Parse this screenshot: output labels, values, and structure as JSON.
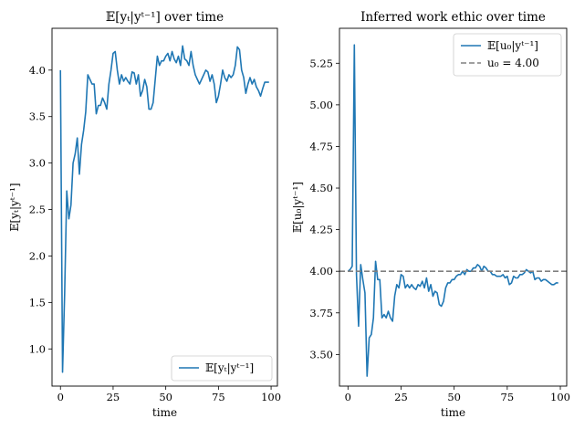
{
  "chart_data": [
    {
      "type": "line",
      "title": "𝔼[yₜ|yᵗ⁻¹] over time",
      "xlabel": "time",
      "ylabel": "𝔼[yₜ|yᵗ⁻¹]",
      "xlim": [
        -4,
        103
      ],
      "ylim": [
        0.6,
        4.45
      ],
      "xticks": [
        0,
        25,
        50,
        75,
        100
      ],
      "yticks": [
        1.0,
        1.5,
        2.0,
        2.5,
        3.0,
        3.5,
        4.0
      ],
      "ytick_labels": [
        "1.0",
        "1.5",
        "2.0",
        "2.5",
        "3.0",
        "3.5",
        "4.0"
      ],
      "grid": false,
      "legend": "lower-right",
      "series": [
        {
          "name": "𝔼[yₜ|yᵗ⁻¹]",
          "color": "#1f77b4",
          "x": [
            0,
            1,
            2,
            3,
            4,
            5,
            6,
            7,
            8,
            9,
            10,
            11,
            12,
            13,
            14,
            15,
            16,
            17,
            18,
            19,
            20,
            21,
            22,
            23,
            24,
            25,
            26,
            27,
            28,
            29,
            30,
            31,
            32,
            33,
            34,
            35,
            36,
            37,
            38,
            39,
            40,
            41,
            42,
            43,
            44,
            45,
            46,
            47,
            48,
            49,
            50,
            51,
            52,
            53,
            54,
            55,
            56,
            57,
            58,
            59,
            60,
            61,
            62,
            63,
            64,
            65,
            66,
            67,
            68,
            69,
            70,
            71,
            72,
            73,
            74,
            75,
            76,
            77,
            78,
            79,
            80,
            81,
            82,
            83,
            84,
            85,
            86,
            87,
            88,
            89,
            90,
            91,
            92,
            93,
            94,
            95,
            96,
            97,
            98,
            99
          ],
          "y": [
            4.0,
            0.75,
            1.6,
            2.7,
            2.4,
            2.55,
            3.0,
            3.1,
            3.27,
            2.88,
            3.2,
            3.35,
            3.55,
            3.95,
            3.9,
            3.85,
            3.85,
            3.53,
            3.62,
            3.62,
            3.7,
            3.65,
            3.58,
            3.85,
            4.0,
            4.18,
            4.2,
            4.0,
            3.85,
            3.95,
            3.88,
            3.92,
            3.88,
            3.85,
            3.98,
            3.97,
            3.85,
            3.95,
            3.72,
            3.78,
            3.9,
            3.82,
            3.58,
            3.58,
            3.65,
            3.9,
            4.15,
            4.05,
            4.1,
            4.1,
            4.15,
            4.18,
            4.1,
            4.2,
            4.12,
            4.08,
            4.15,
            4.05,
            4.26,
            4.12,
            4.1,
            4.05,
            4.2,
            4.05,
            3.95,
            3.9,
            3.85,
            3.9,
            3.95,
            4.0,
            3.98,
            3.88,
            3.95,
            3.85,
            3.65,
            3.72,
            3.85,
            4.0,
            3.92,
            3.88,
            3.95,
            3.92,
            3.95,
            4.05,
            4.25,
            4.22,
            4.0,
            3.92,
            3.75,
            3.85,
            3.92,
            3.85,
            3.9,
            3.82,
            3.78,
            3.72,
            3.8,
            3.87,
            3.87,
            3.87
          ]
        }
      ]
    },
    {
      "type": "line",
      "title": "Inferred work ethic over time",
      "xlabel": "time",
      "ylabel": "𝔼[u₀|yᵗ⁻¹]",
      "xlim": [
        -4,
        103
      ],
      "ylim": [
        3.31,
        5.46
      ],
      "xticks": [
        0,
        25,
        50,
        75,
        100
      ],
      "yticks": [
        3.5,
        3.75,
        4.0,
        4.25,
        4.5,
        4.75,
        5.0,
        5.25
      ],
      "ytick_labels": [
        "3.50",
        "3.75",
        "4.00",
        "4.25",
        "4.50",
        "4.75",
        "5.00",
        "5.25"
      ],
      "grid": false,
      "legend": "top-right",
      "series": [
        {
          "name": "𝔼[u₀|yᵗ⁻¹]",
          "color": "#1f77b4",
          "x": [
            0,
            1,
            2,
            3,
            4,
            5,
            6,
            7,
            8,
            9,
            10,
            11,
            12,
            13,
            14,
            15,
            16,
            17,
            18,
            19,
            20,
            21,
            22,
            23,
            24,
            25,
            26,
            27,
            28,
            29,
            30,
            31,
            32,
            33,
            34,
            35,
            36,
            37,
            38,
            39,
            40,
            41,
            42,
            43,
            44,
            45,
            46,
            47,
            48,
            49,
            50,
            51,
            52,
            53,
            54,
            55,
            56,
            57,
            58,
            59,
            60,
            61,
            62,
            63,
            64,
            65,
            66,
            67,
            68,
            69,
            70,
            71,
            72,
            73,
            74,
            75,
            76,
            77,
            78,
            79,
            80,
            81,
            82,
            83,
            84,
            85,
            86,
            87,
            88,
            89,
            90,
            91,
            92,
            93,
            94,
            95,
            96,
            97,
            98,
            99
          ],
          "y": [
            4.0,
            4.01,
            4.03,
            5.36,
            3.98,
            3.67,
            4.04,
            3.95,
            3.87,
            3.37,
            3.6,
            3.62,
            3.72,
            4.06,
            3.95,
            3.95,
            3.72,
            3.74,
            3.72,
            3.76,
            3.72,
            3.7,
            3.85,
            3.92,
            3.9,
            3.98,
            3.97,
            3.9,
            3.92,
            3.9,
            3.92,
            3.9,
            3.89,
            3.92,
            3.91,
            3.94,
            3.9,
            3.96,
            3.88,
            3.92,
            3.85,
            3.88,
            3.87,
            3.8,
            3.79,
            3.82,
            3.9,
            3.93,
            3.93,
            3.95,
            3.95,
            3.97,
            3.98,
            3.98,
            4.0,
            3.98,
            4.01,
            4.0,
            4.0,
            4.02,
            4.02,
            4.04,
            4.03,
            4.0,
            4.03,
            4.02,
            4.0,
            4.0,
            3.98,
            3.98,
            3.97,
            3.97,
            3.97,
            3.98,
            3.96,
            3.97,
            3.92,
            3.93,
            3.97,
            3.96,
            3.96,
            3.98,
            3.98,
            3.99,
            4.01,
            4.0,
            3.99,
            4.0,
            3.95,
            3.96,
            3.96,
            3.94,
            3.95,
            3.95,
            3.94,
            3.93,
            3.92,
            3.92,
            3.93,
            3.93
          ]
        },
        {
          "name": "u₀ = 4.00",
          "color": "#808080",
          "dashed": true,
          "value": 4.0
        }
      ]
    }
  ]
}
